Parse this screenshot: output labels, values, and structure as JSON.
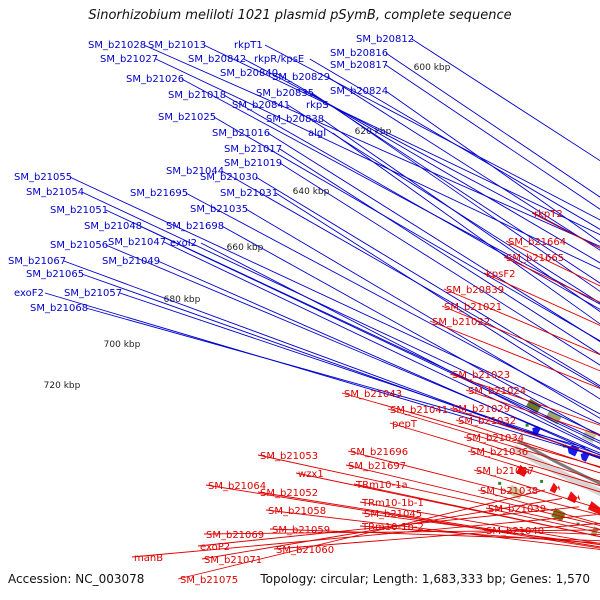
{
  "title": "Sinorhizobium meliloti 1021 plasmid pSymB, complete sequence",
  "footer": {
    "accession": "Accession: NC_003078",
    "stats": "Topology: circular; Length: 1,683,333 bp; Genes: 1,570"
  },
  "colors": {
    "forward_label": "#0000cc",
    "reverse_label": "#dd0000",
    "forward_feature": "#1a1aee",
    "reverse_feature": "#ee1111",
    "backbone": "#888888"
  },
  "scale_labels": [
    "600 kbp",
    "620 kbp",
    "640 kbp",
    "660 kbp",
    "680 kbp",
    "700 kbp",
    "720 kbp"
  ],
  "forward_labels": [
    "SM_b21028",
    "SM_b21013",
    "rkpT1",
    "SM_b20812",
    "SM_b21027",
    "SM_b20842",
    "rkpR/kpsE",
    "SM_b20816",
    "SM_b20817",
    "SM_b20840",
    "SM_b20829",
    "SM_b21026",
    "SM_b20824",
    "SM_b21018",
    "SM_b20835",
    "SM_b20841",
    "rkpS",
    "SM_b21025",
    "SM_b20838",
    "SM_b21016",
    "algI",
    "SM_b21017",
    "SM_b21019",
    "SM_b21044",
    "SM_b21030",
    "SM_b21055",
    "SM_b21695",
    "SM_b21031",
    "SM_b21054",
    "SM_b21035",
    "SM_b21051",
    "SM_b21048",
    "SM_b21698",
    "SM_b21056",
    "SM_b21047",
    "exoI2",
    "SM_b21067",
    "SM_b21049",
    "SM_b21065",
    "exoF2",
    "SM_b21057",
    "SM_b21068"
  ],
  "reverse_labels": [
    "rkpT2",
    "SM_b21664",
    "SM_b21665",
    "kpsF2",
    "SM_b20839",
    "SM_b21021",
    "SM_b21022",
    "SM_b21023",
    "SM_b21024",
    "SM_b21043",
    "SM_b21029",
    "SM_b21041",
    "SM_b21032",
    "pepT",
    "SM_b21034",
    "SM_b21036",
    "SM_b21696",
    "SM_b21053",
    "SM_b21697",
    "SM_b21037",
    "wzx1",
    "TRm10-1a",
    "SM_b21038",
    "SM_b21064",
    "SM_b21052",
    "TRm10-1b-1",
    "SM_b21058",
    "SM_b21045",
    "SM_b21039",
    "TRm10-1b-2",
    "SM_b21059",
    "SM_b21040",
    "SM_b21069",
    "SM_b21060",
    "manB",
    "exoP2",
    "SM_b21071",
    "SM_b21075"
  ]
}
